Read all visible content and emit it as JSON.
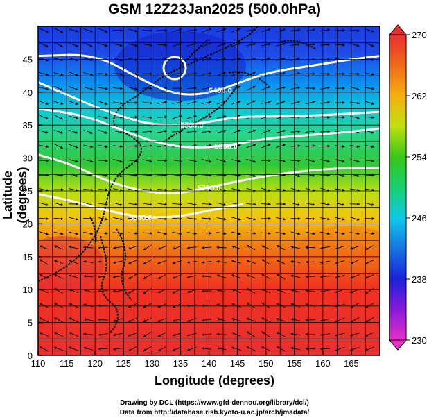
{
  "title": "GSM 12Z23Jan2025 (500.0hPa)",
  "xlabel": "Longitude (degrees)",
  "ylabel": "Latitude (degrees)",
  "credits": [
    "Drawing by DCL (https://www.gfd-dennou.org/library/dcl/)",
    "Data from http://database.rish.kyoto-u.ac.jp/arch/jmadata/"
  ],
  "chart_data": {
    "type": "heatmap",
    "xlim": [
      110,
      170
    ],
    "ylim": [
      0,
      50
    ],
    "x_ticks": [
      "110",
      "115",
      "120",
      "125",
      "130",
      "135",
      "140",
      "145",
      "150",
      "155",
      "160",
      "165"
    ],
    "y_ticks": [
      "0",
      "5",
      "10",
      "15",
      "20",
      "25",
      "30",
      "35",
      "40",
      "45"
    ],
    "colorbar": {
      "range": [
        230,
        270
      ],
      "tick_labels": [
        "230",
        "238",
        "246",
        "254",
        "262",
        "270"
      ]
    },
    "contour_labels": [
      "5400.0",
      "5500.0",
      "5600.0",
      "5700.0",
      "5800.0"
    ],
    "contours": [
      {
        "label": "5400.0",
        "points": [
          [
            110,
            45.5
          ],
          [
            120,
            45.8
          ],
          [
            128,
            42
          ],
          [
            133,
            40
          ],
          [
            137,
            39.5
          ],
          [
            142,
            40.3
          ],
          [
            150,
            43
          ],
          [
            158,
            44
          ],
          [
            165,
            45
          ],
          [
            170,
            45.5
          ]
        ]
      },
      {
        "label": "5500.0",
        "points": [
          [
            110,
            41.5
          ],
          [
            118,
            38.5
          ],
          [
            124,
            36.5
          ],
          [
            130,
            35
          ],
          [
            137,
            35
          ],
          [
            145,
            36.3
          ],
          [
            152,
            36.3
          ],
          [
            160,
            36.5
          ],
          [
            170,
            37
          ]
        ]
      },
      {
        "label": "5600.0",
        "points": [
          [
            110,
            37.5
          ],
          [
            118,
            36.5
          ],
          [
            124,
            34.5
          ],
          [
            130,
            32.5
          ],
          [
            136,
            31.5
          ],
          [
            143,
            31.8
          ],
          [
            150,
            33
          ],
          [
            158,
            33.5
          ],
          [
            165,
            34
          ],
          [
            170,
            34.5
          ]
        ]
      },
      {
        "label": "5700.0",
        "points": [
          [
            110,
            30.5
          ],
          [
            116,
            29
          ],
          [
            122,
            26.5
          ],
          [
            128,
            25
          ],
          [
            134,
            24.5
          ],
          [
            140,
            25.5
          ],
          [
            148,
            27
          ],
          [
            156,
            28
          ],
          [
            164,
            28.5
          ],
          [
            170,
            28.5
          ]
        ]
      },
      {
        "label": "5800.0",
        "points": [
          [
            110,
            24.5
          ],
          [
            116,
            23.5
          ],
          [
            122,
            22
          ],
          [
            128,
            21
          ],
          [
            134,
            21
          ],
          [
            140,
            22
          ],
          [
            146,
            23
          ]
        ]
      }
    ],
    "grid": true
  }
}
